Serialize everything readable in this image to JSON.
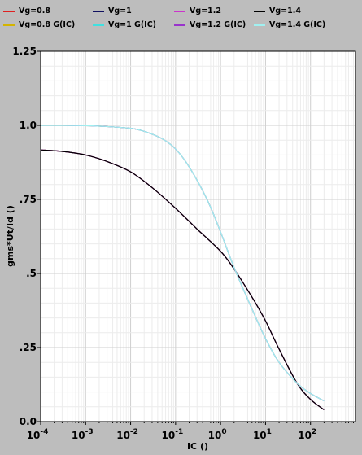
{
  "chart_data": {
    "type": "line",
    "xscale": "log",
    "xlim": [
      0.0001,
      1000
    ],
    "ylim": [
      0,
      1.25
    ],
    "xlabel": "IC ()",
    "ylabel": "gms*Ut/Id ()",
    "xticks": [
      {
        "value": 0.0001,
        "label": "10",
        "exp": "-4"
      },
      {
        "value": 0.001,
        "label": "10",
        "exp": "-3"
      },
      {
        "value": 0.01,
        "label": "10",
        "exp": "-2"
      },
      {
        "value": 0.1,
        "label": "10",
        "exp": "-1"
      },
      {
        "value": 1,
        "label": "10",
        "exp": "0"
      },
      {
        "value": 10,
        "label": "10",
        "exp": "1"
      },
      {
        "value": 100,
        "label": "10",
        "exp": "2"
      }
    ],
    "yticks": [
      {
        "value": 0,
        "label": "0.0"
      },
      {
        "value": 0.25,
        "label": ".25"
      },
      {
        "value": 0.5,
        "label": ".5"
      },
      {
        "value": 0.75,
        "label": ".75"
      },
      {
        "value": 1.0,
        "label": "1.0"
      },
      {
        "value": 1.25,
        "label": "1.25"
      }
    ],
    "grid": true,
    "legend_position": "top",
    "series": [
      {
        "name": "Vg=0.8",
        "color": "#e02020",
        "x": [
          0.0001,
          0.0003,
          0.001,
          0.003,
          0.01,
          0.03,
          0.1,
          0.3,
          1,
          2,
          5,
          10,
          20,
          50,
          100,
          200
        ],
        "y": [
          0.917,
          0.912,
          0.9,
          0.878,
          0.843,
          0.79,
          0.72,
          0.65,
          0.575,
          0.515,
          0.42,
          0.34,
          0.245,
          0.13,
          0.075,
          0.04
        ]
      },
      {
        "name": "Vg=1",
        "color": "#101060",
        "x": [
          0.0001,
          0.0003,
          0.001,
          0.003,
          0.01,
          0.03,
          0.1,
          0.3,
          1,
          2,
          5,
          10,
          20,
          50,
          100,
          200
        ],
        "y": [
          0.917,
          0.912,
          0.9,
          0.878,
          0.843,
          0.79,
          0.72,
          0.65,
          0.575,
          0.515,
          0.42,
          0.34,
          0.245,
          0.13,
          0.075,
          0.04
        ]
      },
      {
        "name": "Vg=1.2",
        "color": "#cc33cc",
        "x": [
          0.0001,
          0.0003,
          0.001,
          0.003,
          0.01,
          0.03,
          0.1,
          0.3,
          1,
          2,
          5,
          10,
          20,
          50,
          100,
          200
        ],
        "y": [
          0.917,
          0.912,
          0.9,
          0.878,
          0.843,
          0.79,
          0.72,
          0.65,
          0.575,
          0.515,
          0.42,
          0.34,
          0.245,
          0.13,
          0.075,
          0.04
        ]
      },
      {
        "name": "Vg=1.4",
        "color": "#000000",
        "x": [
          0.0001,
          0.0003,
          0.001,
          0.003,
          0.01,
          0.03,
          0.1,
          0.3,
          1,
          2,
          5,
          10,
          20,
          50,
          100,
          200
        ],
        "y": [
          0.917,
          0.912,
          0.9,
          0.878,
          0.843,
          0.79,
          0.72,
          0.65,
          0.575,
          0.515,
          0.42,
          0.34,
          0.245,
          0.13,
          0.075,
          0.04
        ]
      },
      {
        "name": "Vg=0.8 G(IC)",
        "color": "#d4b400",
        "x": [
          0.0001,
          0.0003,
          0.001,
          0.003,
          0.01,
          0.02,
          0.05,
          0.1,
          0.2,
          0.5,
          1,
          2,
          5,
          10,
          20,
          50,
          100,
          200
        ],
        "y": [
          1.0,
          1.0,
          0.999,
          0.996,
          0.99,
          0.98,
          0.955,
          0.92,
          0.86,
          0.75,
          0.64,
          0.52,
          0.38,
          0.28,
          0.2,
          0.13,
          0.095,
          0.07
        ]
      },
      {
        "name": "Vg=1 G(IC)",
        "color": "#40e0e0",
        "x": [
          0.0001,
          0.0003,
          0.001,
          0.003,
          0.01,
          0.02,
          0.05,
          0.1,
          0.2,
          0.5,
          1,
          2,
          5,
          10,
          20,
          50,
          100,
          200
        ],
        "y": [
          1.0,
          1.0,
          0.999,
          0.996,
          0.99,
          0.98,
          0.955,
          0.92,
          0.86,
          0.75,
          0.64,
          0.52,
          0.38,
          0.28,
          0.2,
          0.13,
          0.095,
          0.07
        ]
      },
      {
        "name": "Vg=1.2 G(IC)",
        "color": "#9933cc",
        "x": [
          0.0001,
          0.0003,
          0.001,
          0.003,
          0.01,
          0.02,
          0.05,
          0.1,
          0.2,
          0.5,
          1,
          2,
          5,
          10,
          20,
          50,
          100,
          200
        ],
        "y": [
          1.0,
          1.0,
          0.999,
          0.996,
          0.99,
          0.98,
          0.955,
          0.92,
          0.86,
          0.75,
          0.64,
          0.52,
          0.38,
          0.28,
          0.2,
          0.13,
          0.095,
          0.07
        ]
      },
      {
        "name": "Vg=1.4 G(IC)",
        "color": "#a0f0f0",
        "x": [
          0.0001,
          0.0003,
          0.001,
          0.003,
          0.01,
          0.02,
          0.05,
          0.1,
          0.2,
          0.5,
          1,
          2,
          5,
          10,
          20,
          50,
          100,
          200
        ],
        "y": [
          1.0,
          1.0,
          0.999,
          0.996,
          0.99,
          0.98,
          0.955,
          0.92,
          0.86,
          0.75,
          0.64,
          0.52,
          0.38,
          0.28,
          0.2,
          0.13,
          0.095,
          0.07
        ]
      }
    ]
  }
}
